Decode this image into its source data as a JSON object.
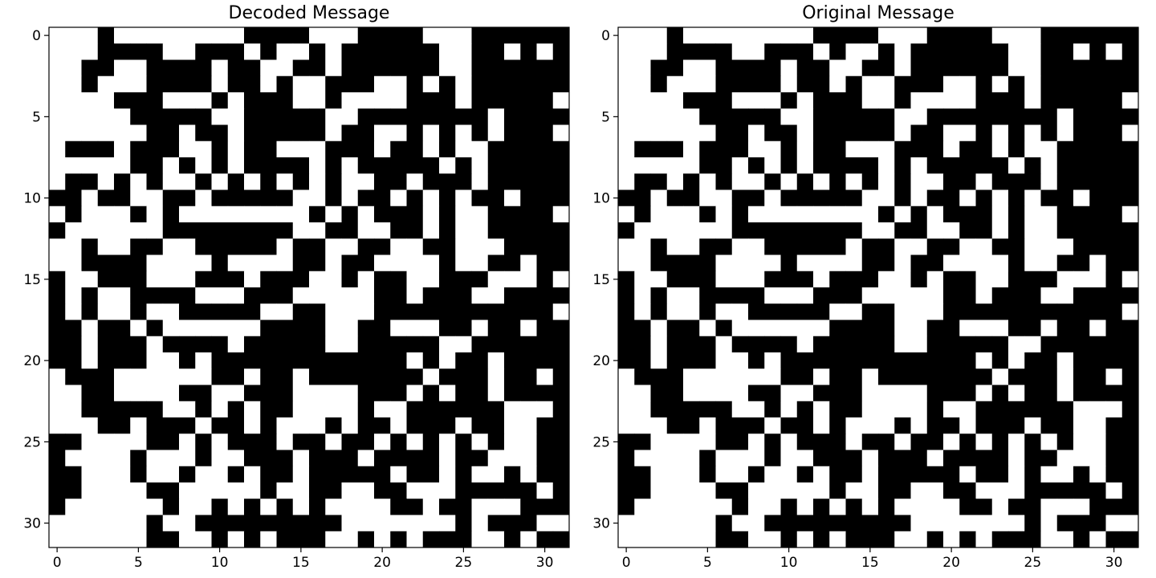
{
  "chart_data": [
    {
      "type": "heatmap",
      "title": "Decoded Message",
      "rows": 32,
      "cols": 32,
      "cmap": "binary (1 = black, 0 = white)",
      "xticks": [
        0,
        5,
        10,
        15,
        20,
        25,
        30
      ],
      "yticks": [
        0,
        5,
        10,
        15,
        20,
        25,
        30
      ],
      "xlim": [
        -0.5,
        31.5
      ],
      "ylim": [
        31.5,
        -0.5
      ],
      "values": [
        "00010000000011110001111000111111",
        "00011110011101001011111100110101",
        "00110011110110011011111100111111",
        "00100011110110100111001010111111",
        "00001110001011100100001110111110",
        "00000111110011111001111111101111",
        "00000011011011111011001010101110",
        "01110111001011000111011010011111",
        "00000110101011110101111101011111",
        "01101010010101010100110111011111",
        "11011001101111100101101010110111",
        "01000101000000001010111010011110",
        "10000001111111100110011010011111",
        "00100110011111011001100110001111",
        "00111100001000011011000010011011",
        "10011100011101110010110011100010",
        "10100111100011100000110111001111",
        "10100100111110011000111111111110",
        "11011010000001111001100011011011",
        "11011101111011111001111100111111",
        "11011100101111111111110101101111",
        "01110000001101101111111011101101",
        "00110000110011100001110101101111",
        "00111110010101100001001111110001",
        "00011011101101000101101110110011",
        "11000011010111011011010101010011",
        "10000100010011101110111101100011",
        "11000100100101101111101101001011",
        "11000011000001001100110001111101",
        "10000001001010101000011011000111",
        "00000010011111111100000001011100",
        "00000011001010111001010111001011"
      ]
    },
    {
      "type": "heatmap",
      "title": "Original Message",
      "rows": 32,
      "cols": 32,
      "cmap": "binary (1 = black, 0 = white)",
      "xticks": [
        0,
        5,
        10,
        15,
        20,
        25,
        30
      ],
      "yticks": [
        0,
        5,
        10,
        15,
        20,
        25,
        30
      ],
      "xlim": [
        -0.5,
        31.5
      ],
      "ylim": [
        31.5,
        -0.5
      ],
      "values": [
        "00010000000011110001111000111111",
        "00011110011101001011111100110101",
        "00110011110110011011111100111111",
        "00100011110110100111001010111111",
        "00001110001011100100001110111110",
        "00000111110011111001111111101111",
        "00000011011011111011001010101110",
        "01110111001011000111011010011111",
        "00000110101011110101111101011111",
        "01101010010101010100110111011111",
        "11011001101111100101101010110111",
        "01000101000000001010111010011110",
        "10000001111111100110011010011111",
        "00100110011111011001100110001111",
        "00111100001000011011000010011011",
        "10011100011101110010110011100010",
        "10100111100011100000110111001111",
        "10100100111110011000111111111110",
        "11011010000001111001100011011011",
        "11011101111011111001111100111111",
        "11011100101111111111110101101111",
        "01110000001101101111111011101101",
        "00110000110011100001110101101111",
        "00111110010101100001001111110001",
        "00011011101101000101101110110011",
        "11000011010111011011010101010011",
        "10000100010011101110111101100011",
        "11000100100101101111101101001011",
        "11000011000001001100110001111101",
        "10000001001010101000011011000111",
        "00000010011111111100000001011100",
        "00000011001010111001010111001011"
      ]
    }
  ]
}
